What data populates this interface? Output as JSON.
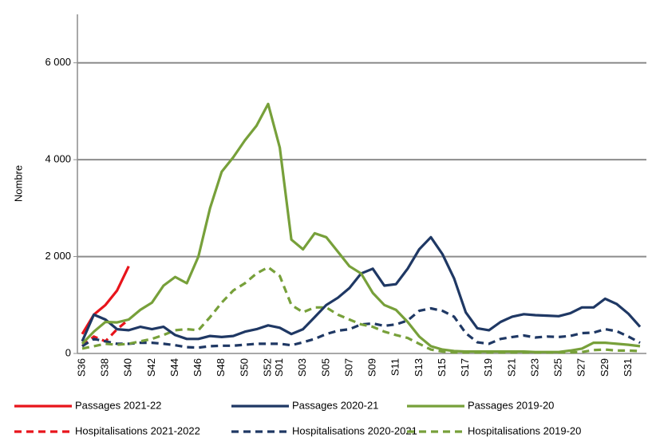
{
  "chart_data": {
    "type": "line",
    "ylabel": "Nombre",
    "categories": [
      "S36",
      null,
      "S38",
      null,
      "S40",
      null,
      "S42",
      null,
      "S44",
      null,
      "S46",
      null,
      "S48",
      null,
      "S50",
      null,
      "S52",
      "S01",
      null,
      "S03",
      null,
      "S05",
      null,
      "S07",
      null,
      "S09",
      null,
      "S11",
      null,
      "S13",
      null,
      "S15",
      null,
      "S17",
      null,
      "S19",
      null,
      "S21",
      null,
      "S23",
      null,
      "S25",
      null,
      "S27",
      null,
      "S29",
      null,
      "S31",
      null
    ],
    "ylim": [
      0,
      7000
    ],
    "yticks": [
      0,
      {
        "value": 2000,
        "label": "2 000"
      },
      {
        "value": 4000,
        "label": "4 000"
      },
      {
        "value": 6000,
        "label": "6 000"
      }
    ],
    "grid": true,
    "series": [
      {
        "name": "Passages 2021-22",
        "color": "#e8141b",
        "dashed": false,
        "values": [
          400,
          800,
          1000,
          1300,
          1800,
          null,
          null,
          null,
          null,
          null,
          null,
          null,
          null,
          null,
          null,
          null,
          null,
          null,
          null,
          null,
          null,
          null,
          null,
          null,
          null,
          null,
          null,
          null,
          null,
          null,
          null,
          null,
          null,
          null,
          null,
          null,
          null,
          null,
          null,
          null,
          null,
          null,
          null,
          null,
          null,
          null,
          null,
          null,
          null
        ]
      },
      {
        "name": "Passages 2020-21",
        "color": "#1f3864",
        "dashed": false,
        "values": [
          250,
          800,
          700,
          500,
          480,
          550,
          500,
          550,
          380,
          300,
          300,
          360,
          340,
          360,
          450,
          500,
          580,
          530,
          400,
          500,
          750,
          1000,
          1150,
          1350,
          1650,
          1750,
          1400,
          1430,
          1750,
          2150,
          2400,
          2050,
          1550,
          850,
          520,
          480,
          650,
          760,
          810,
          790,
          780,
          770,
          830,
          950,
          950,
          1130,
          1020,
          820,
          550
        ]
      },
      {
        "name": "Passages 2019-20",
        "color": "#77a03a",
        "dashed": false,
        "values": [
          200,
          450,
          650,
          640,
          700,
          900,
          1050,
          1400,
          1580,
          1450,
          2000,
          3000,
          3750,
          4050,
          4400,
          4700,
          5150,
          4250,
          2350,
          2150,
          2480,
          2400,
          2100,
          1800,
          1650,
          1250,
          1000,
          900,
          650,
          350,
          150,
          80,
          50,
          40,
          40,
          40,
          40,
          40,
          40,
          30,
          30,
          30,
          60,
          100,
          220,
          220,
          200,
          180,
          150
        ]
      },
      {
        "name": "Hospitalisations 2021-2022",
        "color": "#e8141b",
        "dashed": true,
        "values": [
          150,
          350,
          250,
          500,
          700,
          null,
          null,
          null,
          null,
          null,
          null,
          null,
          null,
          null,
          null,
          null,
          null,
          null,
          null,
          null,
          null,
          null,
          null,
          null,
          null,
          null,
          null,
          null,
          null,
          null,
          null,
          null,
          null,
          null,
          null,
          null,
          null,
          null,
          null,
          null,
          null,
          null,
          null,
          null,
          null,
          null,
          null,
          null,
          null
        ]
      },
      {
        "name": "Hospitalisations 2020-2021",
        "color": "#1f3864",
        "dashed": true,
        "values": [
          150,
          300,
          250,
          200,
          200,
          220,
          220,
          200,
          170,
          130,
          120,
          150,
          160,
          160,
          180,
          200,
          200,
          200,
          170,
          230,
          300,
          400,
          470,
          500,
          600,
          620,
          570,
          600,
          680,
          880,
          930,
          880,
          760,
          420,
          230,
          200,
          300,
          340,
          370,
          330,
          350,
          340,
          360,
          420,
          430,
          500,
          460,
          350,
          220
        ]
      },
      {
        "name": "Hospitalisations 2019-20",
        "color": "#77a03a",
        "dashed": true,
        "values": [
          100,
          150,
          200,
          180,
          200,
          250,
          300,
          380,
          480,
          500,
          480,
          750,
          1050,
          1300,
          1450,
          1650,
          1780,
          1600,
          1000,
          850,
          950,
          950,
          800,
          700,
          600,
          550,
          450,
          380,
          320,
          200,
          80,
          40,
          20,
          20,
          20,
          20,
          20,
          20,
          20,
          20,
          20,
          20,
          20,
          30,
          70,
          80,
          60,
          60,
          50
        ]
      }
    ]
  }
}
